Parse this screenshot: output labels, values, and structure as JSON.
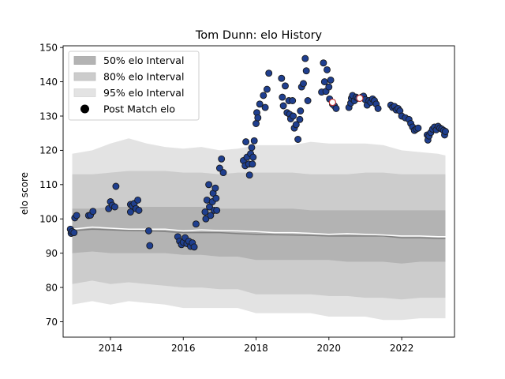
{
  "chart_data": {
    "type": "scatter",
    "title": "Tom Dunn: elo History",
    "ylabel": "elo score",
    "xlabel": "",
    "xlim": [
      2012.7,
      2023.45
    ],
    "ylim": [
      65.5,
      150.5
    ],
    "xticks": [
      2014,
      2016,
      2018,
      2020,
      2022
    ],
    "yticks": [
      70,
      80,
      90,
      100,
      110,
      120,
      130,
      140,
      150
    ],
    "grid": false,
    "legend": {
      "placement": "top-left",
      "entries": [
        "50% elo Interval",
        "80% elo Interval",
        "95% elo Interval",
        "Post Match elo"
      ]
    },
    "colors": {
      "band50": "#b3b3b3",
      "band80": "#cccccc",
      "band95": "#e3e3e3",
      "median": "#808080",
      "mean": "#ffffff",
      "point_fill": "#1f3f8f",
      "point_edge": "#1a1a1a",
      "highlight_fill": "#ffffff",
      "highlight_edge": "#c03030"
    },
    "bands": {
      "x": [
        2012.95,
        2013.5,
        2014.0,
        2014.5,
        2015.0,
        2015.5,
        2016.0,
        2016.5,
        2017.0,
        2017.5,
        2018.0,
        2018.5,
        2019.0,
        2019.5,
        2020.0,
        2020.5,
        2021.0,
        2021.5,
        2022.0,
        2022.5,
        2023.0,
        2023.2
      ],
      "p95_lo": [
        75,
        76,
        75,
        76,
        75.5,
        75,
        74,
        74,
        74,
        74,
        72.5,
        72.5,
        72.5,
        72.5,
        71.5,
        71.5,
        71.5,
        70.5,
        70.5,
        71,
        71,
        71
      ],
      "p80_lo": [
        81,
        82,
        81,
        81.5,
        81,
        80.5,
        80,
        80,
        79.5,
        79.5,
        78,
        78,
        78,
        78,
        77.5,
        77.5,
        77,
        77,
        76.5,
        77,
        77,
        77
      ],
      "p50_lo": [
        90,
        90.5,
        90,
        90,
        90,
        90,
        89.5,
        89.5,
        89,
        89,
        88,
        88,
        88,
        88,
        88,
        87.5,
        87.5,
        87.5,
        87,
        87.5,
        87.5,
        87.5
      ],
      "p50_hi": [
        103,
        103,
        103.5,
        103.5,
        103.5,
        103.5,
        103.5,
        103.5,
        103,
        103,
        103,
        103,
        103,
        102.5,
        102.5,
        102.5,
        102.5,
        102.5,
        102.5,
        102.5,
        102.5,
        102.5
      ],
      "p80_hi": [
        113,
        113,
        113.5,
        114,
        114,
        114,
        113.5,
        113.5,
        113,
        113.5,
        113.5,
        113.5,
        113.5,
        113,
        113,
        113,
        113.5,
        113.5,
        113,
        113,
        113,
        113
      ],
      "p95_hi": [
        119,
        120,
        122,
        123.5,
        122,
        121,
        120.5,
        121,
        120,
        120.5,
        121.5,
        121.5,
        121.5,
        122.5,
        122,
        122,
        122,
        121.5,
        120,
        119.5,
        119,
        118.5
      ],
      "median": [
        96.5,
        97,
        96.8,
        96.6,
        96.5,
        96.3,
        96,
        96,
        96,
        95.7,
        95.5,
        95.4,
        95.3,
        95.2,
        95,
        95,
        95,
        95,
        94.5,
        94.5,
        94.3,
        94.3
      ],
      "mean": [
        97,
        97.6,
        97.3,
        97,
        97,
        97,
        96.5,
        96.8,
        96.6,
        96.5,
        96.3,
        96,
        96,
        95.8,
        95.5,
        95.7,
        95.5,
        95.3,
        95,
        95,
        94.8,
        94.8
      ]
    },
    "points": [
      [
        2012.9,
        97
      ],
      [
        2012.92,
        95.8
      ],
      [
        2012.95,
        96.3
      ],
      [
        2013.0,
        96
      ],
      [
        2013.02,
        100.3
      ],
      [
        2013.07,
        101
      ],
      [
        2013.4,
        101
      ],
      [
        2013.45,
        101.1
      ],
      [
        2013.52,
        102.2
      ],
      [
        2013.95,
        103
      ],
      [
        2014.0,
        105
      ],
      [
        2014.05,
        104
      ],
      [
        2014.12,
        103.5
      ],
      [
        2014.15,
        109.5
      ],
      [
        2014.55,
        102
      ],
      [
        2014.55,
        104.2
      ],
      [
        2014.6,
        103.8
      ],
      [
        2014.65,
        104.5
      ],
      [
        2014.7,
        103
      ],
      [
        2014.75,
        105.5
      ],
      [
        2014.78,
        102.5
      ],
      [
        2015.05,
        96.5
      ],
      [
        2015.08,
        92.2
      ],
      [
        2015.85,
        94.8
      ],
      [
        2015.9,
        93.5
      ],
      [
        2015.95,
        92.5
      ],
      [
        2016.0,
        93.2
      ],
      [
        2016.05,
        94.5
      ],
      [
        2016.1,
        92.8
      ],
      [
        2016.15,
        93.5
      ],
      [
        2016.2,
        92
      ],
      [
        2016.25,
        93
      ],
      [
        2016.3,
        91.8
      ],
      [
        2016.35,
        98.5
      ],
      [
        2016.6,
        102
      ],
      [
        2016.62,
        100
      ],
      [
        2016.65,
        105.5
      ],
      [
        2016.7,
        110
      ],
      [
        2016.72,
        103.5
      ],
      [
        2016.75,
        101
      ],
      [
        2016.8,
        105
      ],
      [
        2016.82,
        107.5
      ],
      [
        2016.85,
        102.5
      ],
      [
        2016.88,
        109
      ],
      [
        2016.9,
        106
      ],
      [
        2016.92,
        102.5
      ],
      [
        2017.0,
        114.8
      ],
      [
        2017.05,
        117.5
      ],
      [
        2017.1,
        113.5
      ],
      [
        2017.65,
        117
      ],
      [
        2017.7,
        115.5
      ],
      [
        2017.72,
        122.5
      ],
      [
        2017.75,
        118
      ],
      [
        2017.8,
        116
      ],
      [
        2017.82,
        112.8
      ],
      [
        2017.85,
        119
      ],
      [
        2017.88,
        120.8
      ],
      [
        2017.9,
        116
      ],
      [
        2017.92,
        118
      ],
      [
        2017.95,
        122.8
      ],
      [
        2018.0,
        127.8
      ],
      [
        2018.02,
        131
      ],
      [
        2018.05,
        129.5
      ],
      [
        2018.1,
        133.5
      ],
      [
        2018.2,
        136
      ],
      [
        2018.25,
        132.5
      ],
      [
        2018.3,
        137.8
      ],
      [
        2018.35,
        142.5
      ],
      [
        2018.7,
        141
      ],
      [
        2018.72,
        135.5
      ],
      [
        2018.75,
        133
      ],
      [
        2018.8,
        138.8
      ],
      [
        2018.85,
        131
      ],
      [
        2018.9,
        134.5
      ],
      [
        2018.92,
        130.5
      ],
      [
        2018.95,
        129.2
      ],
      [
        2019.0,
        134.5
      ],
      [
        2019.02,
        130
      ],
      [
        2019.05,
        126.5
      ],
      [
        2019.1,
        127.5
      ],
      [
        2019.15,
        123.2
      ],
      [
        2019.2,
        129
      ],
      [
        2019.22,
        131.5
      ],
      [
        2019.25,
        138.5
      ],
      [
        2019.3,
        139.5
      ],
      [
        2019.35,
        146.8
      ],
      [
        2019.38,
        143.2
      ],
      [
        2019.42,
        134.5
      ],
      [
        2019.8,
        137
      ],
      [
        2019.85,
        145.5
      ],
      [
        2019.88,
        140
      ],
      [
        2019.92,
        137.2
      ],
      [
        2019.95,
        143.5
      ],
      [
        2020.0,
        138.5
      ],
      [
        2020.02,
        135
      ],
      [
        2020.05,
        140.5
      ],
      [
        2020.1,
        133.5
      ],
      [
        2020.15,
        133
      ],
      [
        2020.2,
        132.2
      ],
      [
        2020.55,
        132.5
      ],
      [
        2020.6,
        133.8
      ],
      [
        2020.62,
        135.2
      ],
      [
        2020.65,
        136
      ],
      [
        2020.7,
        134.5
      ],
      [
        2020.75,
        135.5
      ],
      [
        2020.8,
        135.2
      ],
      [
        2020.9,
        135.5
      ],
      [
        2020.95,
        135.8
      ],
      [
        2021.0,
        134.8
      ],
      [
        2021.05,
        133.2
      ],
      [
        2021.1,
        134.5
      ],
      [
        2021.15,
        134
      ],
      [
        2021.2,
        135
      ],
      [
        2021.25,
        134.5
      ],
      [
        2021.3,
        133.5
      ],
      [
        2021.35,
        132.2
      ],
      [
        2021.7,
        133.2
      ],
      [
        2021.75,
        132.5
      ],
      [
        2021.8,
        132.8
      ],
      [
        2021.85,
        131.8
      ],
      [
        2021.9,
        132.2
      ],
      [
        2021.95,
        131.5
      ],
      [
        2022.0,
        130
      ],
      [
        2022.1,
        129.5
      ],
      [
        2022.2,
        129
      ],
      [
        2022.25,
        127.8
      ],
      [
        2022.3,
        126.8
      ],
      [
        2022.35,
        125.8
      ],
      [
        2022.4,
        126.2
      ],
      [
        2022.45,
        126.5
      ],
      [
        2022.7,
        124.5
      ],
      [
        2022.72,
        123
      ],
      [
        2022.75,
        124.2
      ],
      [
        2022.8,
        125.2
      ],
      [
        2022.85,
        126.2
      ],
      [
        2022.9,
        126.8
      ],
      [
        2022.95,
        126
      ],
      [
        2023.0,
        127
      ],
      [
        2023.05,
        126.5
      ],
      [
        2023.1,
        126.2
      ],
      [
        2023.15,
        125.8
      ],
      [
        2023.18,
        124.5
      ],
      [
        2023.2,
        125.5
      ]
    ],
    "highlight_points": [
      [
        2020.1,
        134.0
      ],
      [
        2020.85,
        135.2
      ]
    ]
  }
}
